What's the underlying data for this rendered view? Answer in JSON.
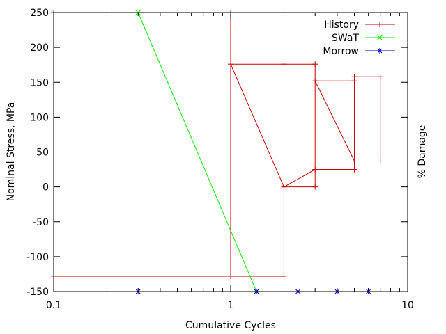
{
  "chart_data": {
    "type": "line",
    "xscale": "log",
    "xlim": [
      0.1,
      10
    ],
    "ylim": [
      -150,
      250
    ],
    "xlabel": "Cumulative Cycles",
    "ylabel": "Nominal Stress, MPa",
    "y2label": "% Damage",
    "x_ticks": [
      {
        "value": 0.1,
        "label": "0.1"
      },
      {
        "value": 1,
        "label": "1"
      },
      {
        "value": 10,
        "label": "10"
      }
    ],
    "y_ticks": [
      {
        "value": -150,
        "label": "-150"
      },
      {
        "value": -100,
        "label": "-100"
      },
      {
        "value": -50,
        "label": "-50"
      },
      {
        "value": 0,
        "label": "0"
      },
      {
        "value": 50,
        "label": "50"
      },
      {
        "value": 100,
        "label": "100"
      },
      {
        "value": 150,
        "label": "150"
      },
      {
        "value": 200,
        "label": "200"
      },
      {
        "value": 250,
        "label": "250"
      }
    ],
    "grid": false,
    "legend_position": "top-right",
    "series": [
      {
        "name": "History",
        "color": "#cc0000",
        "marker": "plus",
        "x": [
          0.1,
          1,
          1,
          0.1,
          2,
          2,
          1,
          2,
          3,
          3,
          2,
          3,
          5,
          5,
          3,
          5,
          7,
          7,
          5
        ],
        "y": [
          250,
          250,
          -128,
          -128,
          -128,
          0,
          176,
          176,
          176,
          0,
          0,
          25,
          25,
          152,
          152,
          37,
          37,
          158,
          158
        ]
      },
      {
        "name": "SWaT",
        "color": "#00ee00",
        "marker": "cross",
        "x": [
          0.3,
          1.4
        ],
        "y": [
          250,
          -150
        ]
      },
      {
        "name": "Morrow",
        "color": "#0000cc",
        "marker": "star",
        "show_line": false,
        "x": [
          0.3,
          1.4,
          2.4,
          4,
          6
        ],
        "y": [
          -150,
          -150,
          -150,
          -150,
          -150
        ]
      }
    ]
  }
}
